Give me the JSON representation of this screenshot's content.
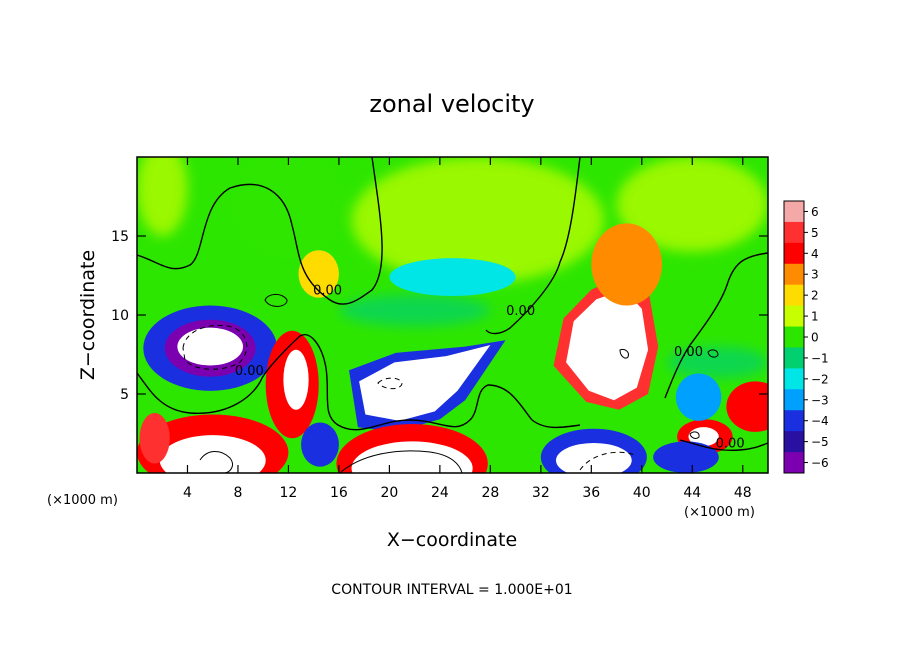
{
  "chart_data": {
    "type": "heatmap",
    "title": "zonal velocity",
    "xlabel": "X−coordinate",
    "ylabel": "Z−coordinate",
    "x_unit_label": "(×1000 m)",
    "y_unit_label": "(×1000 m)",
    "xlim": [
      0,
      50
    ],
    "ylim": [
      0,
      20
    ],
    "x_ticks": [
      4,
      8,
      12,
      16,
      20,
      24,
      28,
      32,
      36,
      40,
      44,
      48
    ],
    "y_ticks": [
      5,
      10,
      15
    ],
    "colorbar": {
      "levels": [
        6,
        5,
        4,
        3,
        2,
        1,
        0,
        -1,
        -2,
        -3,
        -4,
        -5,
        -6
      ],
      "tick_labels": [
        "6",
        "5",
        "4",
        "3",
        "2",
        "1",
        "0",
        "−1",
        "−2",
        "−3",
        "−4",
        "−5",
        "−6"
      ],
      "colors": [
        "#f4a8a8",
        "#ff3030",
        "#ff0000",
        "#ff8c00",
        "#ffdc00",
        "#c8ff00",
        "#2de600",
        "#00d070",
        "#00e6e6",
        "#00a0ff",
        "#1a30e0",
        "#2a10a0",
        "#7a00b0"
      ]
    },
    "contour_labels": [
      {
        "text": "0.00",
        "x": 15.1,
        "y": 11.3
      },
      {
        "text": "0.00",
        "x": 30.4,
        "y": 10.0
      },
      {
        "text": "0.00",
        "x": 8.9,
        "y": 6.2
      },
      {
        "text": "0.00",
        "x": 43.7,
        "y": 7.4
      },
      {
        "text": "0.00",
        "x": 47.0,
        "y": 1.6
      }
    ],
    "features": [
      {
        "shape": "ellipse",
        "x": 5.8,
        "y": 7.9,
        "rx": 5.3,
        "ry": 2.7,
        "value": -4
      },
      {
        "shape": "ellipse",
        "x": 5.8,
        "y": 7.9,
        "rx": 3.6,
        "ry": 1.8,
        "value": -6
      },
      {
        "shape": "ellipse",
        "x": 5.8,
        "y": 8.0,
        "rx": 2.6,
        "ry": 1.2,
        "value": -7
      },
      {
        "shape": "polygon",
        "points": [
          [
            16.8,
            6.5
          ],
          [
            17.5,
            2.9
          ],
          [
            20.5,
            2.6
          ],
          [
            24.0,
            3.4
          ],
          [
            26.0,
            4.6
          ],
          [
            29.2,
            8.4
          ],
          [
            26.0,
            8.0
          ],
          [
            20.5,
            7.6
          ]
        ],
        "value": -4
      },
      {
        "shape": "polygon",
        "points": [
          [
            17.6,
            5.8
          ],
          [
            18.1,
            3.7
          ],
          [
            20.8,
            3.3
          ],
          [
            23.6,
            3.9
          ],
          [
            25.4,
            5.2
          ],
          [
            28.0,
            8.1
          ],
          [
            24.5,
            7.4
          ],
          [
            20.4,
            7.0
          ]
        ],
        "value": -7
      },
      {
        "shape": "polygon",
        "points": [
          [
            33.0,
            6.8
          ],
          [
            33.8,
            9.8
          ],
          [
            36.0,
            11.6
          ],
          [
            38.6,
            12.6
          ],
          [
            40.6,
            11.2
          ],
          [
            41.3,
            8.0
          ],
          [
            40.5,
            5.0
          ],
          [
            38.2,
            4.0
          ],
          [
            35.6,
            4.5
          ]
        ],
        "value": 5
      },
      {
        "shape": "polygon",
        "points": [
          [
            34.0,
            7.0
          ],
          [
            34.6,
            9.6
          ],
          [
            36.4,
            11.0
          ],
          [
            38.6,
            11.6
          ],
          [
            40.0,
            10.4
          ],
          [
            40.5,
            7.8
          ],
          [
            39.6,
            5.4
          ],
          [
            37.8,
            4.6
          ],
          [
            35.8,
            5.2
          ]
        ],
        "value": 7
      },
      {
        "shape": "ellipse",
        "x": 38.8,
        "y": 13.2,
        "rx": 2.8,
        "ry": 2.6,
        "value": 3
      },
      {
        "shape": "ellipse",
        "x": 12.3,
        "y": 5.6,
        "rx": 2.1,
        "ry": 3.4,
        "value": 4
      },
      {
        "shape": "ellipse",
        "x": 12.6,
        "y": 5.9,
        "rx": 1.0,
        "ry": 1.9,
        "value": 7
      },
      {
        "shape": "ellipse",
        "x": 6.0,
        "y": 1.3,
        "rx": 6.0,
        "ry": 2.4,
        "value": 4
      },
      {
        "shape": "ellipse",
        "x": 6.0,
        "y": 0.8,
        "rx": 4.2,
        "ry": 1.6,
        "value": 7
      },
      {
        "shape": "ellipse",
        "x": 21.8,
        "y": 0.6,
        "rx": 6.0,
        "ry": 2.5,
        "value": 4
      },
      {
        "shape": "ellipse",
        "x": 21.8,
        "y": 0.3,
        "rx": 4.8,
        "ry": 1.7,
        "value": 7
      },
      {
        "shape": "ellipse",
        "x": 36.2,
        "y": 1.0,
        "rx": 4.2,
        "ry": 1.8,
        "value": -4
      },
      {
        "shape": "ellipse",
        "x": 36.2,
        "y": 0.8,
        "rx": 3.0,
        "ry": 1.1,
        "value": -7
      },
      {
        "shape": "ellipse",
        "x": 45.0,
        "y": 2.3,
        "rx": 2.2,
        "ry": 1.1,
        "value": 4
      },
      {
        "shape": "ellipse",
        "x": 44.9,
        "y": 2.3,
        "rx": 1.2,
        "ry": 0.6,
        "value": 7
      },
      {
        "shape": "ellipse",
        "x": 49.0,
        "y": 4.2,
        "rx": 2.3,
        "ry": 1.6,
        "value": 4
      },
      {
        "shape": "ellipse",
        "x": 44.5,
        "y": 4.8,
        "rx": 1.8,
        "ry": 1.5,
        "value": -3
      },
      {
        "shape": "ellipse",
        "x": 43.5,
        "y": 1.0,
        "rx": 2.6,
        "ry": 1.0,
        "value": -4
      },
      {
        "shape": "ellipse",
        "x": 14.4,
        "y": 12.6,
        "rx": 1.6,
        "ry": 1.5,
        "value": 2
      },
      {
        "shape": "ellipse",
        "x": 25.0,
        "y": 12.4,
        "rx": 5.0,
        "ry": 1.2,
        "value": -2
      },
      {
        "shape": "ellipse",
        "x": 14.5,
        "y": 1.8,
        "rx": 1.5,
        "ry": 1.4,
        "value": -4
      },
      {
        "shape": "ellipse",
        "x": 1.4,
        "y": 2.2,
        "rx": 1.2,
        "ry": 1.6,
        "value": 5
      }
    ]
  },
  "footer": {
    "contour_interval": "CONTOUR INTERVAL = 1.000E+01"
  }
}
